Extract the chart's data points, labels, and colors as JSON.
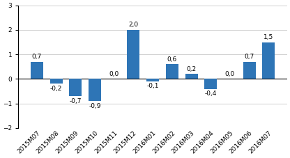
{
  "categories": [
    "2015M07",
    "2015M08",
    "2015M09",
    "2015M10",
    "2015M11",
    "2015M12",
    "2016M01",
    "2016M02",
    "2016M03",
    "2016M04",
    "2016M05",
    "2016M06",
    "2016M07"
  ],
  "values": [
    0.7,
    -0.2,
    -0.7,
    -0.9,
    0.0,
    2.0,
    -0.1,
    0.6,
    0.2,
    -0.4,
    0.0,
    0.7,
    1.5
  ],
  "bar_color": "#2E75B6",
  "ylim": [
    -2,
    3
  ],
  "yticks": [
    -2,
    -1,
    0,
    1,
    2,
    3
  ],
  "label_fontsize": 6.5,
  "tick_fontsize": 6.5,
  "bar_width": 0.65,
  "background_color": "#ffffff",
  "grid_color": "#c8c8c8"
}
